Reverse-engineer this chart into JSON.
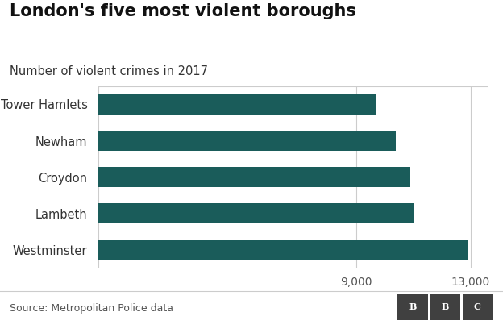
{
  "title": "London's five most violent boroughs",
  "subtitle": "Number of violent crimes in 2017",
  "source": "Source: Metropolitan Police data",
  "categories": [
    "Tower Hamlets",
    "Newham",
    "Croydon",
    "Lambeth",
    "Westminster"
  ],
  "values": [
    9700,
    10400,
    10900,
    11000,
    12900
  ],
  "bar_color": "#1a5c5a",
  "background_color": "#ffffff",
  "xlim": [
    0,
    13600
  ],
  "xticks": [
    9000,
    13000
  ],
  "xticklabels": [
    "9,000",
    "13,000"
  ],
  "title_fontsize": 15,
  "subtitle_fontsize": 10.5,
  "tick_fontsize": 10,
  "label_fontsize": 10.5,
  "source_fontsize": 9,
  "bar_height": 0.55
}
